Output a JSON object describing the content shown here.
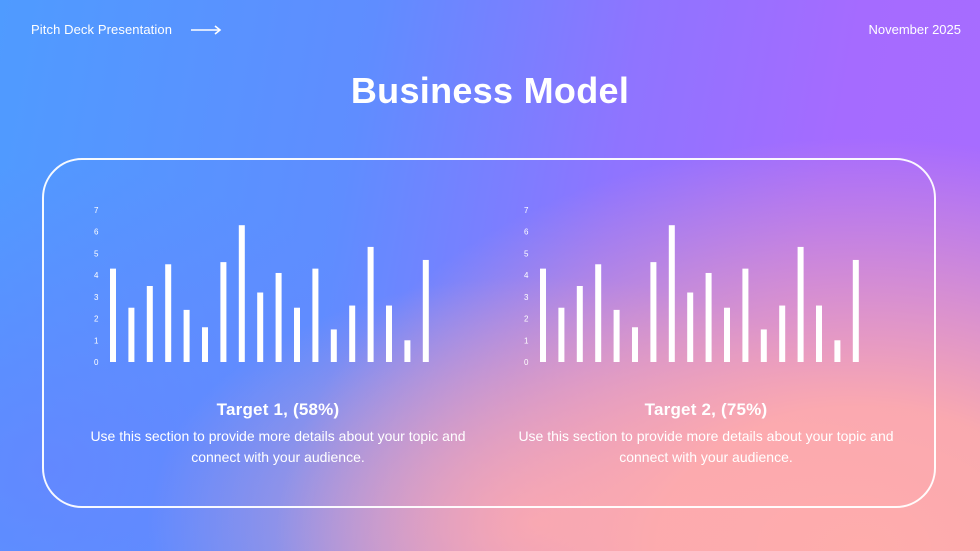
{
  "header": {
    "left_label": "Pitch Deck Presentation",
    "arrow_icon": "arrow-right-icon",
    "date": "November 2025"
  },
  "title": "Business Model",
  "targets": [
    {
      "title": "Target 1, (58%)",
      "description": "Use this section to provide more details about your topic and connect with your audience."
    },
    {
      "title": "Target 2, (75%)",
      "description": "Use this section to provide more details about your topic and connect with your audience."
    }
  ],
  "colors": {
    "text": "#ffffff",
    "gradient_blue": "#4f9bff",
    "gradient_purple": "#a56bff",
    "gradient_pink": "#ffacac"
  },
  "chart_data": [
    {
      "type": "bar",
      "ylim": [
        0,
        7
      ],
      "yticks": [
        "0",
        "1",
        "2",
        "3",
        "4",
        "5",
        "6",
        "7"
      ],
      "values": [
        4.3,
        2.5,
        3.5,
        4.5,
        2.4,
        1.6,
        4.6,
        6.3,
        3.2,
        4.1,
        2.5,
        4.3,
        1.5,
        2.6,
        5.3,
        2.6,
        1.0,
        4.7
      ]
    },
    {
      "type": "bar",
      "ylim": [
        0,
        7
      ],
      "yticks": [
        "0",
        "1",
        "2",
        "3",
        "4",
        "5",
        "6",
        "7"
      ],
      "values": [
        4.3,
        2.5,
        3.5,
        4.5,
        2.4,
        1.6,
        4.6,
        6.3,
        3.2,
        4.1,
        2.5,
        4.3,
        1.5,
        2.6,
        5.3,
        2.6,
        1.0,
        4.7
      ]
    }
  ]
}
